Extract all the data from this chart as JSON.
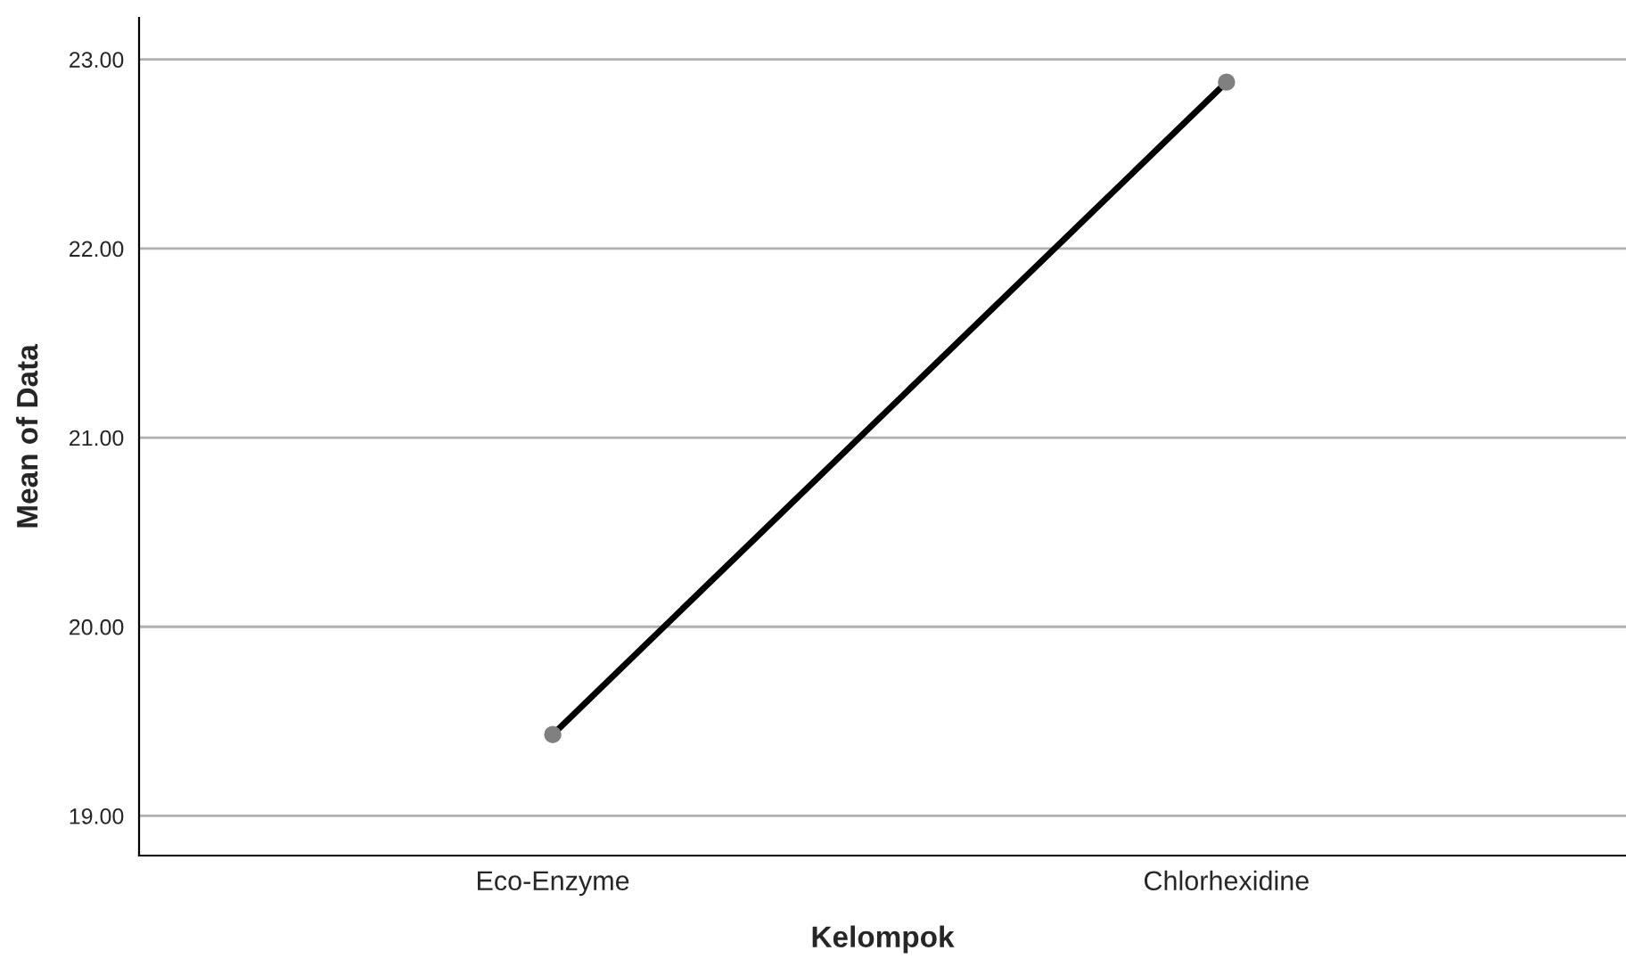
{
  "chart_data": {
    "type": "line",
    "xlabel": "Kelompok",
    "ylabel": "Mean of Data",
    "categories": [
      "Eco-Enzyme",
      "Chlorhexidine"
    ],
    "series": [
      {
        "color": "#000000",
        "values": [
          19.43,
          22.88
        ]
      }
    ],
    "ylim": [
      18.79,
      23.22
    ],
    "yticks": [
      {
        "value": 19,
        "label": "19.00"
      },
      {
        "value": 20,
        "label": "20.00"
      },
      {
        "value": 21,
        "label": "21.00"
      },
      {
        "value": 22,
        "label": "22.00"
      },
      {
        "value": 23,
        "label": "23.00"
      }
    ],
    "grid": "y",
    "marker": "circle",
    "line_style": "solid"
  }
}
